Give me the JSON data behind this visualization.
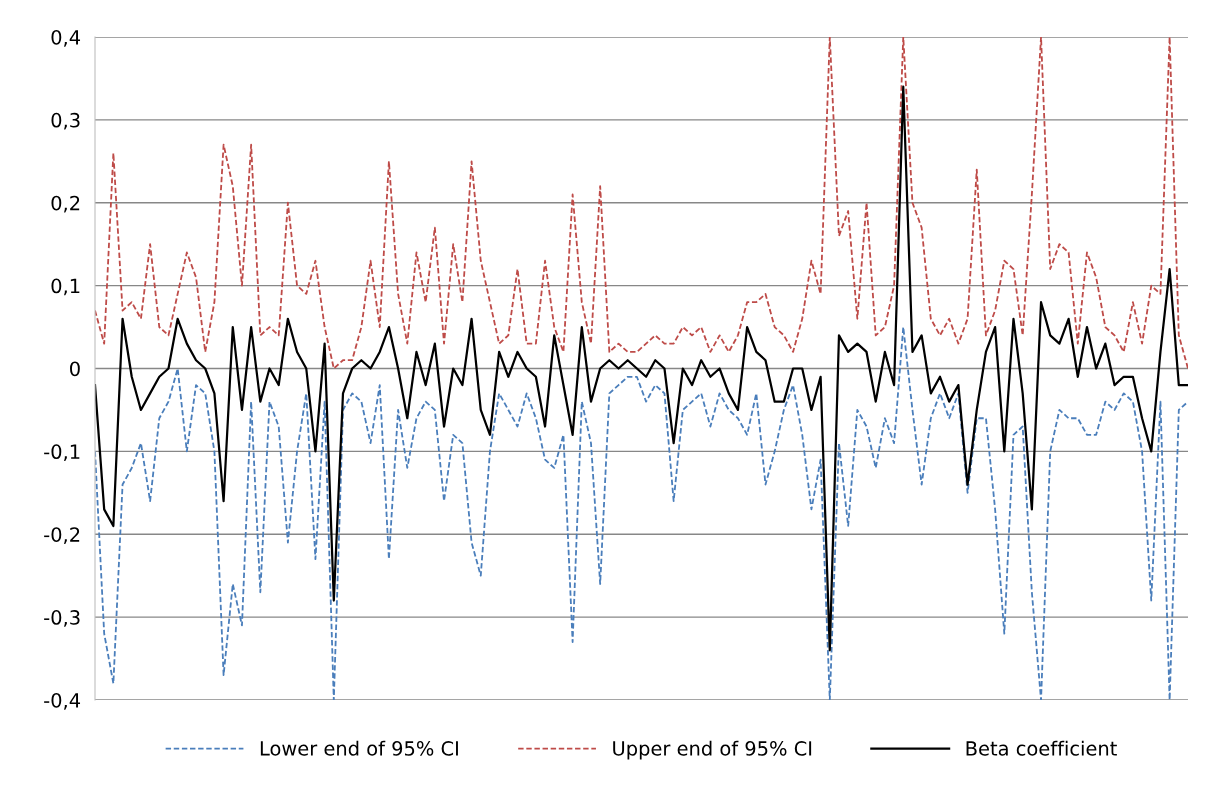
{
  "chart_data": {
    "type": "line",
    "categories": [
      null,
      null,
      null,
      null,
      null,
      null,
      null,
      null,
      null,
      null,
      null,
      null,
      null,
      null,
      null,
      null,
      null,
      null,
      null,
      null,
      null,
      null,
      null,
      null,
      null,
      null,
      null,
      null,
      null,
      null,
      null,
      null,
      null,
      null,
      null,
      null,
      null,
      null,
      null,
      null,
      null,
      null,
      null,
      null,
      null,
      null,
      null,
      null,
      null,
      null,
      null,
      null,
      null,
      null,
      null,
      null,
      null,
      null,
      null,
      null,
      null,
      null,
      null,
      null,
      null,
      null,
      null,
      null,
      null,
      null,
      null,
      null,
      null,
      null,
      null,
      null,
      null,
      null,
      null,
      null,
      null,
      null,
      null,
      null,
      null,
      null,
      null,
      null,
      null,
      null,
      null,
      null,
      null,
      null,
      null,
      null,
      null,
      null,
      null,
      null,
      null,
      null,
      null,
      null,
      null,
      null,
      null,
      null,
      null,
      null,
      null,
      null,
      null,
      null,
      null,
      null,
      null,
      null,
      null,
      null
    ],
    "series": [
      {
        "name": "Lower end of 95% CI",
        "color": "#4a7ebb",
        "line_style": "dashed",
        "values": [
          -0.1,
          -0.32,
          -0.38,
          -0.14,
          -0.12,
          -0.09,
          -0.16,
          -0.06,
          -0.04,
          0.0,
          -0.1,
          -0.02,
          -0.03,
          -0.1,
          -0.37,
          -0.26,
          -0.31,
          -0.04,
          -0.27,
          -0.04,
          -0.07,
          -0.21,
          -0.1,
          -0.03,
          -0.23,
          -0.04,
          -0.4,
          -0.05,
          -0.03,
          -0.04,
          -0.09,
          -0.02,
          -0.23,
          -0.05,
          -0.12,
          -0.06,
          -0.04,
          -0.05,
          -0.16,
          -0.08,
          -0.09,
          -0.21,
          -0.25,
          -0.1,
          -0.03,
          -0.05,
          -0.07,
          -0.03,
          -0.06,
          -0.11,
          -0.12,
          -0.08,
          -0.33,
          -0.04,
          -0.09,
          -0.26,
          -0.03,
          -0.02,
          -0.01,
          -0.01,
          -0.04,
          -0.02,
          -0.03,
          -0.16,
          -0.05,
          -0.04,
          -0.03,
          -0.07,
          -0.03,
          -0.05,
          -0.06,
          -0.08,
          -0.03,
          -0.14,
          -0.1,
          -0.05,
          -0.02,
          -0.08,
          -0.17,
          -0.11,
          -0.4,
          -0.09,
          -0.19,
          -0.05,
          -0.07,
          -0.12,
          -0.06,
          -0.09,
          0.05,
          -0.05,
          -0.14,
          -0.06,
          -0.03,
          -0.06,
          -0.03,
          -0.15,
          -0.06,
          -0.06,
          -0.17,
          -0.32,
          -0.08,
          -0.07,
          -0.27,
          -0.4,
          -0.1,
          -0.05,
          -0.06,
          -0.06,
          -0.08,
          -0.08,
          -0.04,
          -0.05,
          -0.03,
          -0.04,
          -0.1,
          -0.28,
          -0.04,
          -0.4,
          -0.05,
          -0.04
        ]
      },
      {
        "name": "Upper end of 95% CI",
        "color": "#be4b48",
        "line_style": "dashed",
        "values": [
          0.07,
          0.03,
          0.26,
          0.07,
          0.08,
          0.06,
          0.15,
          0.05,
          0.04,
          0.09,
          0.14,
          0.11,
          0.02,
          0.08,
          0.27,
          0.22,
          0.1,
          0.27,
          0.04,
          0.05,
          0.04,
          0.2,
          0.1,
          0.09,
          0.13,
          0.05,
          0.0,
          0.01,
          0.01,
          0.05,
          0.13,
          0.05,
          0.25,
          0.09,
          0.03,
          0.14,
          0.08,
          0.17,
          0.03,
          0.15,
          0.08,
          0.25,
          0.13,
          0.08,
          0.03,
          0.04,
          0.12,
          0.03,
          0.03,
          0.13,
          0.05,
          0.02,
          0.21,
          0.08,
          0.03,
          0.22,
          0.02,
          0.03,
          0.02,
          0.02,
          0.03,
          0.04,
          0.03,
          0.03,
          0.05,
          0.04,
          0.05,
          0.02,
          0.04,
          0.02,
          0.04,
          0.08,
          0.08,
          0.09,
          0.05,
          0.04,
          0.02,
          0.06,
          0.13,
          0.09,
          0.4,
          0.16,
          0.19,
          0.06,
          0.2,
          0.04,
          0.05,
          0.1,
          0.4,
          0.2,
          0.17,
          0.06,
          0.04,
          0.06,
          0.03,
          0.06,
          0.24,
          0.04,
          0.07,
          0.13,
          0.12,
          0.04,
          0.21,
          0.4,
          0.12,
          0.15,
          0.14,
          0.03,
          0.14,
          0.11,
          0.05,
          0.04,
          0.02,
          0.08,
          0.03,
          0.1,
          0.09,
          0.4,
          0.04,
          0.0
        ]
      },
      {
        "name": "Beta coefficient",
        "color": "#000000",
        "line_style": "solid",
        "values": [
          -0.02,
          -0.17,
          -0.19,
          0.06,
          -0.01,
          -0.05,
          -0.03,
          -0.01,
          0.0,
          0.06,
          0.03,
          0.01,
          0.0,
          -0.03,
          -0.16,
          0.05,
          -0.05,
          0.05,
          -0.04,
          0.0,
          -0.02,
          0.06,
          0.02,
          0.0,
          -0.1,
          0.03,
          -0.28,
          -0.03,
          0.0,
          0.01,
          0.0,
          0.02,
          0.05,
          0.0,
          -0.06,
          0.02,
          -0.02,
          0.03,
          -0.07,
          0.0,
          -0.02,
          0.06,
          -0.05,
          -0.08,
          0.02,
          -0.01,
          0.02,
          0.0,
          -0.01,
          -0.07,
          0.04,
          -0.02,
          -0.08,
          0.05,
          -0.04,
          0.0,
          0.01,
          0.0,
          0.01,
          0.0,
          -0.01,
          0.01,
          0.0,
          -0.09,
          0.0,
          -0.02,
          0.01,
          -0.01,
          0.0,
          -0.03,
          -0.05,
          0.05,
          0.02,
          0.01,
          -0.04,
          -0.04,
          0.0,
          0.0,
          -0.05,
          -0.01,
          -0.34,
          0.04,
          0.02,
          0.03,
          0.02,
          -0.04,
          0.02,
          -0.02,
          0.34,
          0.02,
          0.04,
          -0.03,
          -0.01,
          -0.04,
          -0.02,
          -0.14,
          -0.05,
          0.02,
          0.05,
          -0.1,
          0.06,
          -0.03,
          -0.17,
          0.08,
          0.04,
          0.03,
          0.06,
          -0.01,
          0.05,
          0.0,
          0.03,
          -0.02,
          -0.01,
          -0.01,
          -0.06,
          -0.1,
          0.02,
          0.12,
          -0.02,
          -0.02
        ]
      }
    ],
    "ylim": [
      -0.4,
      0.4
    ],
    "yticks": [
      {
        "value": -0.4,
        "label": "-0,4"
      },
      {
        "value": -0.3,
        "label": "-0,3"
      },
      {
        "value": -0.2,
        "label": "-0,2"
      },
      {
        "value": -0.1,
        "label": "-0,1"
      },
      {
        "value": 0,
        "label": "0"
      },
      {
        "value": 0.1,
        "label": "0,1"
      },
      {
        "value": 0.2,
        "label": "0,2"
      },
      {
        "value": 0.3,
        "label": "0,3"
      },
      {
        "value": 0.4,
        "label": "0,4"
      }
    ],
    "grid": "y",
    "legend": "bottom",
    "marker": "none",
    "tick_labels": "y"
  }
}
